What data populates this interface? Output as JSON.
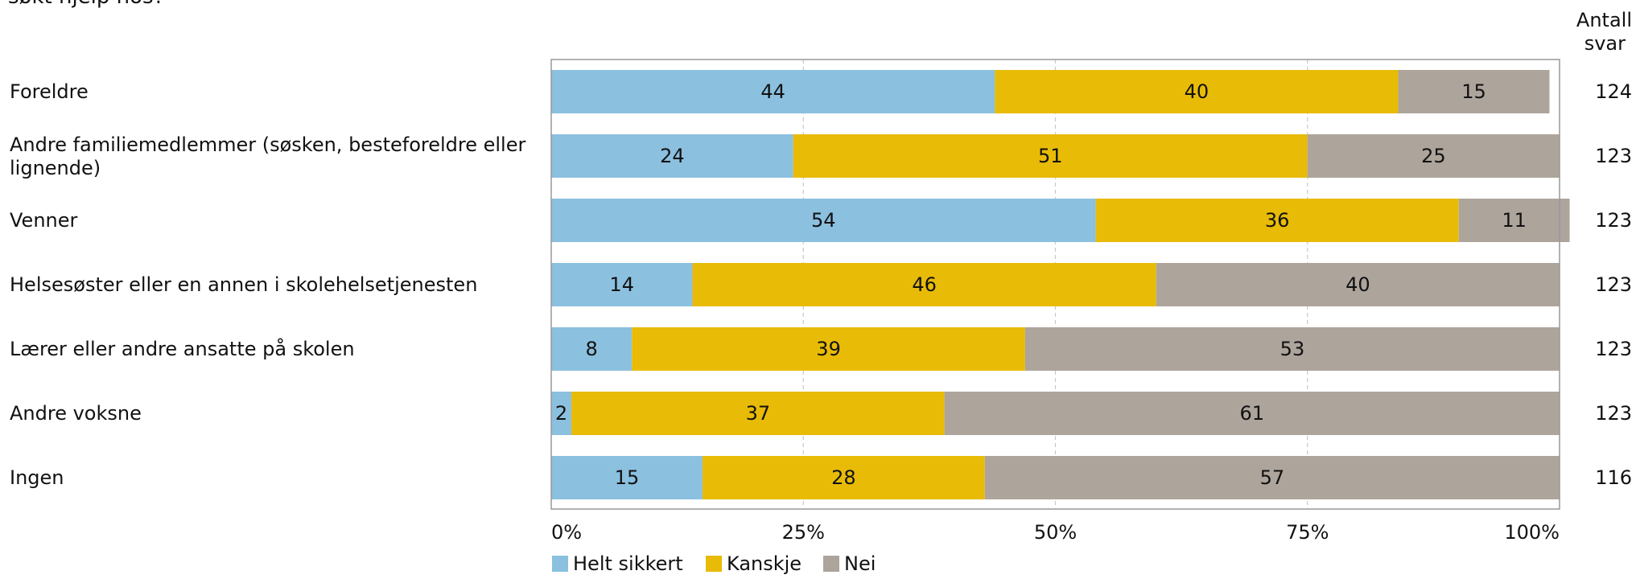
{
  "title_fragment": "søkt hjelp hos?",
  "count_header": [
    "Antall",
    "svar"
  ],
  "chart_data": {
    "type": "bar",
    "orientation": "horizontal",
    "stacked": true,
    "percent_scale": true,
    "categories": [
      "Foreldre",
      "Andre familiemedlemmer (søsken, besteforeldre eller lignende)",
      "Venner",
      "Helsesøster eller en annen i skolehelsetjenesten",
      "Lærer eller andre ansatte på skolen",
      "Andre voksne",
      "Ingen"
    ],
    "series": [
      {
        "name": "Helt sikkert",
        "color": "#8bc0df",
        "values": [
          44,
          24,
          54,
          14,
          8,
          2,
          15
        ]
      },
      {
        "name": "Kanskje",
        "color": "#e8bb07",
        "values": [
          40,
          51,
          36,
          46,
          39,
          37,
          28
        ]
      },
      {
        "name": "Nei",
        "color": "#ada49c",
        "values": [
          15,
          25,
          11,
          40,
          53,
          61,
          57
        ]
      }
    ],
    "counts": [
      124,
      123,
      123,
      123,
      123,
      123,
      116
    ],
    "x_ticks": [
      "0%",
      "25%",
      "50%",
      "75%",
      "100%"
    ],
    "xlim": [
      0,
      100
    ],
    "grid": true,
    "legend_position": "bottom-left"
  }
}
